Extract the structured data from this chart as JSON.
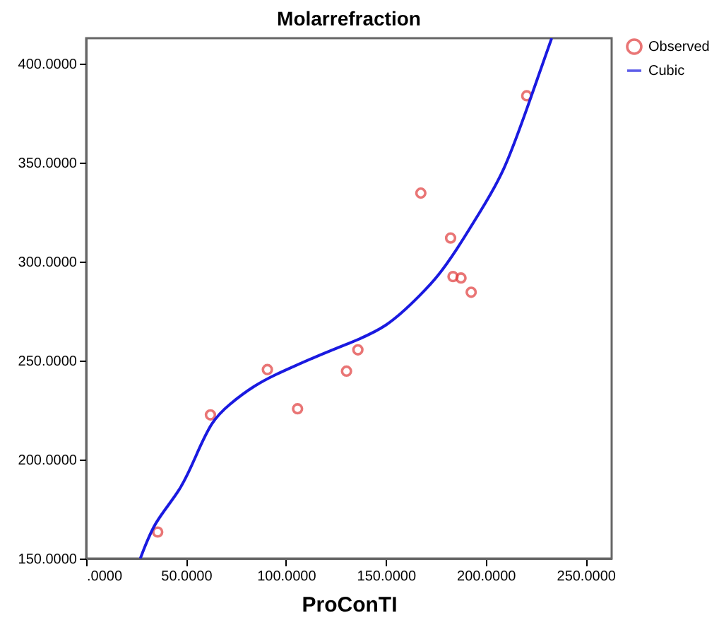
{
  "chart_data": {
    "type": "scatter",
    "title": "Molarrefraction",
    "xlabel": "ProConTI",
    "xlim": [
      0,
      263
    ],
    "ylim": [
      150,
      413
    ],
    "xticks": [
      {
        "value": 0,
        "label": ".0000"
      },
      {
        "value": 50,
        "label": "50.0000"
      },
      {
        "value": 100,
        "label": "100.0000"
      },
      {
        "value": 150,
        "label": "150.0000"
      },
      {
        "value": 200,
        "label": "200.0000"
      },
      {
        "value": 250,
        "label": "250.0000"
      }
    ],
    "yticks": [
      {
        "value": 150,
        "label": "150.0000"
      },
      {
        "value": 200,
        "label": "200.0000"
      },
      {
        "value": 250,
        "label": "250.0000"
      },
      {
        "value": 300,
        "label": "300.0000"
      },
      {
        "value": 350,
        "label": "350.0000"
      },
      {
        "value": 400,
        "label": "400.0000"
      }
    ],
    "grid": false,
    "legend": "top right",
    "series": [
      {
        "name": "Observed",
        "marker": "circle",
        "color": "#e03c3c",
        "x": [
          35.8,
          62.2,
          90.7,
          105.8,
          130.3,
          136,
          167.5,
          182.4,
          183.6,
          187.6,
          192.7,
          220.5
        ],
        "values": [
          163.4,
          222.6,
          245.5,
          225.7,
          244.7,
          255.5,
          334.7,
          312,
          292.5,
          291.8,
          284.6,
          383.9
        ]
      },
      {
        "name": "Cubic",
        "type": "line",
        "marker": "none",
        "color": "#1a1ae0",
        "line_style": "solid",
        "x": [
          27.1,
          35,
          46.4,
          55,
          62.9,
          72,
          84.1,
          95,
          103,
          115,
          131,
          150,
          166.6,
          176,
          185.4,
          197,
          209,
          220.8,
          233
        ],
        "values": [
          150,
          168,
          184.6,
          202,
          218,
          228,
          237,
          243,
          246.7,
          252,
          258.6,
          268,
          282.6,
          293,
          306.3,
          325,
          347,
          378,
          413
        ]
      }
    ]
  }
}
